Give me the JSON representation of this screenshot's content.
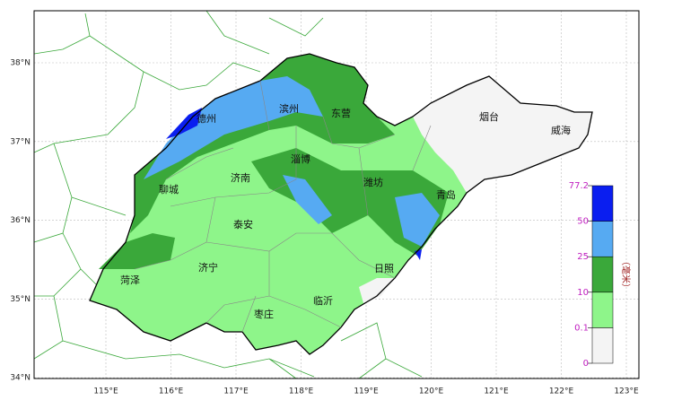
{
  "map": {
    "lon_labels": [
      "115°E",
      "116°E",
      "117°E",
      "118°E",
      "119°E",
      "120°E",
      "121°E",
      "122°E",
      "123°E"
    ],
    "lat_labels": [
      "38°N",
      "37°N",
      "36°N",
      "35°N",
      "34°N"
    ],
    "cities": [
      "德州",
      "滨州",
      "东营",
      "烟台",
      "威海",
      "淄博",
      "济南",
      "潍坊",
      "聊城",
      "青岛",
      "泰安",
      "济宁",
      "菏泽",
      "日照",
      "临沂",
      "枣庄"
    ],
    "legend": {
      "levels": [
        0,
        0.1,
        10,
        25,
        50,
        77.2
      ],
      "colors": [
        "#f4f4f4",
        "#8ef58a",
        "#3aa83a",
        "#56aaf2",
        "#0a1ef0"
      ],
      "unit": "（毫米）"
    }
  }
}
